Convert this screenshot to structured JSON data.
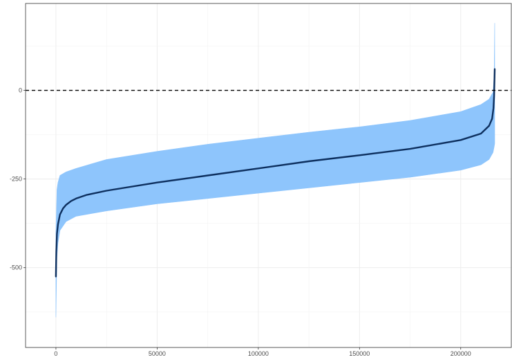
{
  "chart_data": {
    "type": "line",
    "title": "",
    "xlabel": "",
    "ylabel": "",
    "xlim": [
      -15000,
      225000
    ],
    "ylim": [
      -725,
      245
    ],
    "x_ticks": [
      0,
      50000,
      100000,
      150000,
      200000
    ],
    "x_tick_labels": [
      "0",
      "50000",
      "100000",
      "150000",
      "200000"
    ],
    "y_ticks": [
      -500,
      -250,
      0
    ],
    "y_tick_labels": [
      "-500",
      "-250",
      "0"
    ],
    "grid": true,
    "legend": "none",
    "reference_line": {
      "y": 0,
      "style": "dashed"
    },
    "series": [
      {
        "kind": "ribbon",
        "color": "#8ec5fc",
        "x": [
          0,
          500,
          1000,
          2000,
          5000,
          10000,
          25000,
          50000,
          75000,
          100000,
          125000,
          150000,
          175000,
          200000,
          210000,
          214000,
          216000,
          216500,
          216800
        ],
        "lower": [
          -640,
          -470,
          -430,
          -395,
          -370,
          -355,
          -340,
          -320,
          -305,
          -290,
          -275,
          -260,
          -245,
          -225,
          -210,
          -195,
          -175,
          -160,
          -150
        ],
        "upper": [
          -400,
          -280,
          -260,
          -240,
          -230,
          -220,
          -195,
          -172,
          -152,
          -135,
          -118,
          -103,
          -85,
          -60,
          -40,
          -25,
          -5,
          40,
          190
        ]
      },
      {
        "kind": "line",
        "color": "#0d2f5e",
        "x": [
          0,
          200,
          500,
          1000,
          2000,
          3500,
          5000,
          7500,
          10000,
          15000,
          25000,
          50000,
          75000,
          100000,
          125000,
          150000,
          175000,
          200000,
          210000,
          214000,
          215500,
          216200,
          216500,
          216800
        ],
        "y": [
          -525,
          -455,
          -405,
          -378,
          -350,
          -333,
          -323,
          -312,
          -305,
          -295,
          -283,
          -260,
          -240,
          -220,
          -200,
          -183,
          -165,
          -140,
          -122,
          -100,
          -80,
          -50,
          -15,
          60
        ]
      }
    ]
  }
}
